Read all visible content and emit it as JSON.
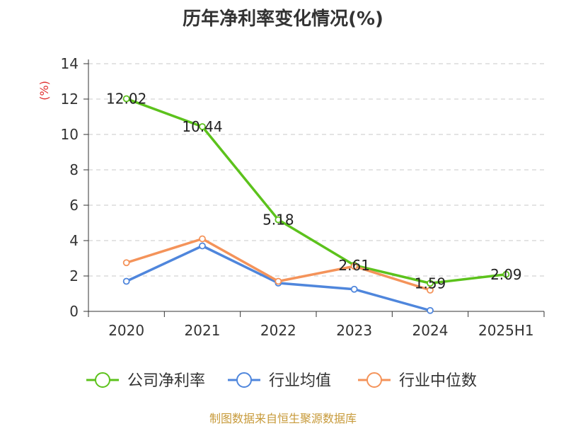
{
  "chart_data": {
    "type": "line",
    "title": "历年净利率变化情况(%)",
    "ylabel": "(%)",
    "categories": [
      "2020",
      "2021",
      "2022",
      "2023",
      "2024",
      "2025H1"
    ],
    "ylim": [
      0,
      14
    ],
    "yticks": [
      0,
      2,
      4,
      6,
      8,
      10,
      12,
      14
    ],
    "grid": true,
    "legend_position": "bottom",
    "series": [
      {
        "name": "公司净利率",
        "color": "#5cc21c",
        "values": [
          12.02,
          10.44,
          5.18,
          2.61,
          1.59,
          2.09
        ],
        "labels": [
          "12.02",
          "10.44",
          "5.18",
          "2.61",
          "1.59",
          "2.09"
        ]
      },
      {
        "name": "行业均值",
        "color": "#4f86dc",
        "values": [
          1.7,
          3.7,
          1.6,
          1.25,
          0.05,
          null
        ]
      },
      {
        "name": "行业中位数",
        "color": "#f4935a",
        "values": [
          2.75,
          4.1,
          1.7,
          2.55,
          1.2,
          null
        ]
      }
    ]
  },
  "footer": {
    "source": "制图数据来自恒生聚源数据库"
  }
}
